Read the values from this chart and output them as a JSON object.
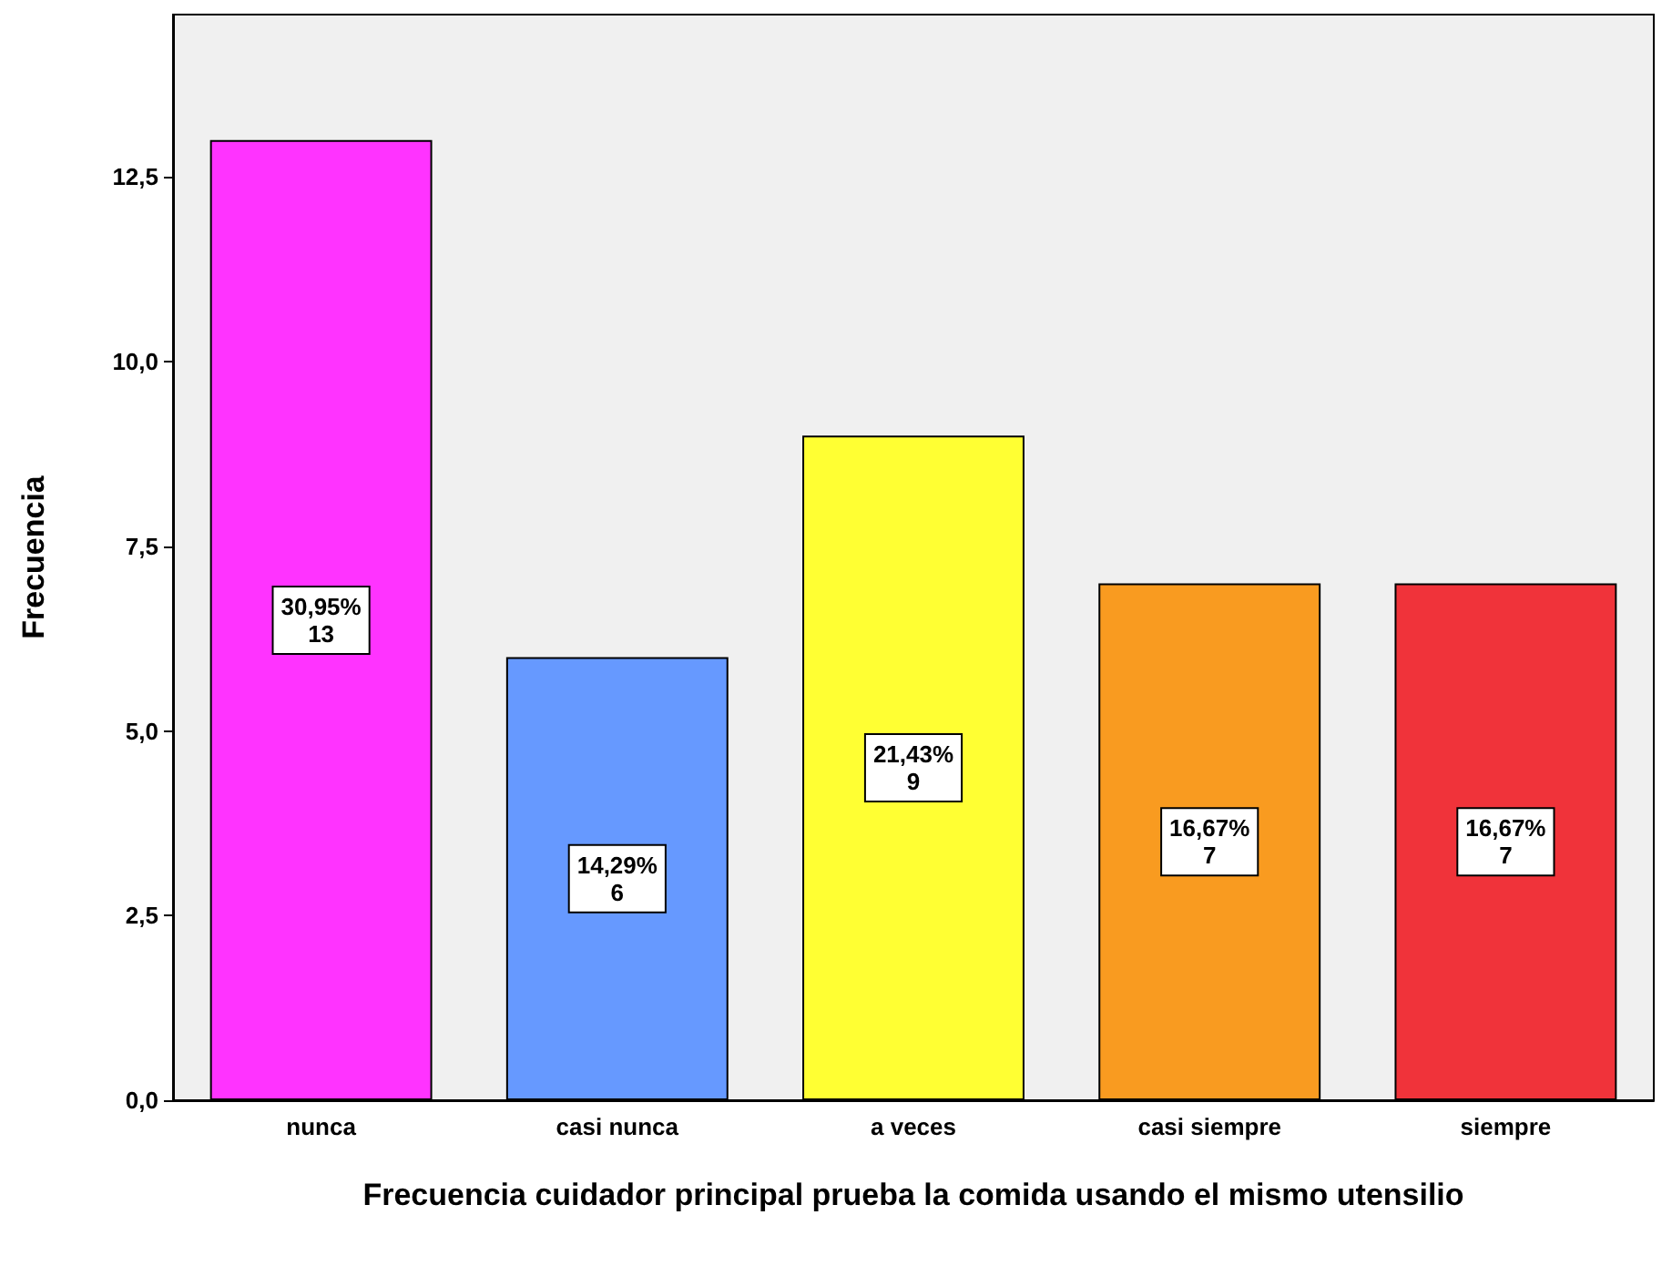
{
  "chart_data": {
    "type": "bar",
    "xlabel": "Frecuencia cuidador principal prueba la comida usando el mismo utensilio",
    "ylabel": "Frecuencia",
    "categories": [
      "nunca",
      "casi nunca",
      "a veces",
      "casi siempre",
      "siempre"
    ],
    "values": [
      13,
      6,
      9,
      7,
      7
    ],
    "colors": [
      "#ff33ff",
      "#6699ff",
      "#ffff33",
      "#f99b20",
      "#f0333a"
    ],
    "value_labels": [
      "30,95%\n13",
      "14,29%\n6",
      "21,43%\n9",
      "16,67%\n7",
      "16,67%\n7"
    ],
    "ylim": [
      0,
      14.7
    ],
    "yticks": [
      {
        "value": 0,
        "label": "0,0"
      },
      {
        "value": 2.5,
        "label": "2,5"
      },
      {
        "value": 5,
        "label": "5,0"
      },
      {
        "value": 7.5,
        "label": "7,5"
      },
      {
        "value": 10,
        "label": "10,0"
      },
      {
        "value": 12.5,
        "label": "12,5"
      }
    ],
    "grid": false
  }
}
